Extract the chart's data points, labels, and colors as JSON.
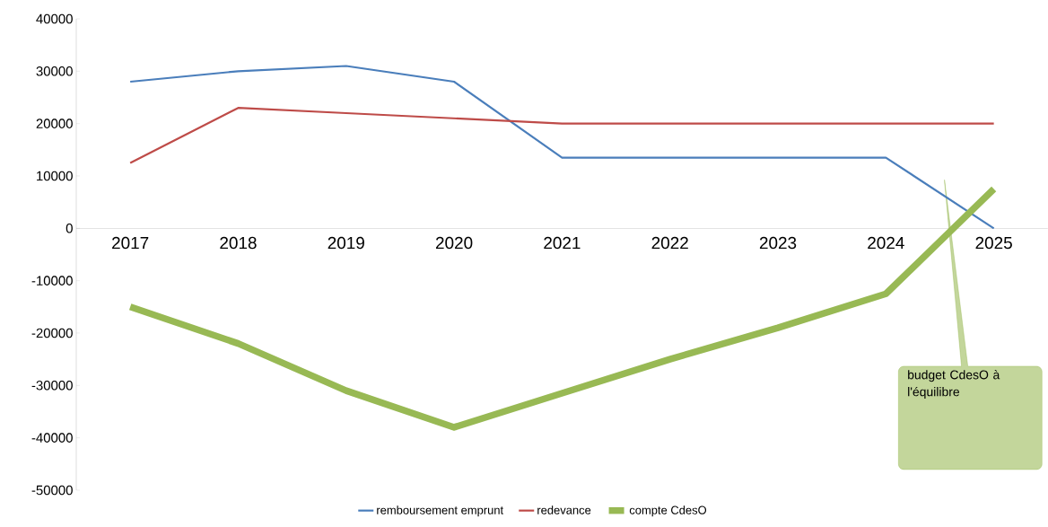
{
  "chart_data": {
    "type": "line",
    "categories": [
      "2017",
      "2018",
      "2019",
      "2020",
      "2021",
      "2022",
      "2023",
      "2024",
      "2025"
    ],
    "series": [
      {
        "name": "remboursement emprunt",
        "color": "#4a7ebb",
        "values": [
          28000,
          30000,
          31000,
          28000,
          13500,
          13500,
          13500,
          13500,
          0
        ]
      },
      {
        "name": "redevance",
        "color": "#be4b48",
        "values": [
          12500,
          23000,
          22000,
          21000,
          20000,
          20000,
          20000,
          20000,
          20000
        ]
      },
      {
        "name": "compte CdesO",
        "color": "#98b954",
        "values": [
          -15000,
          -22000,
          -31000,
          -38000,
          -31500,
          -25000,
          -19000,
          -12500,
          7500
        ]
      }
    ],
    "ylim": [
      -50000,
      40000
    ],
    "yticks": [
      -50000,
      -40000,
      -30000,
      -20000,
      -10000,
      0,
      10000,
      20000,
      30000,
      40000
    ],
    "grid": false,
    "legend": "bottom",
    "marker": "none",
    "line_style": "solid",
    "annotations": [
      "budget CdesO à l'équilibre"
    ]
  }
}
